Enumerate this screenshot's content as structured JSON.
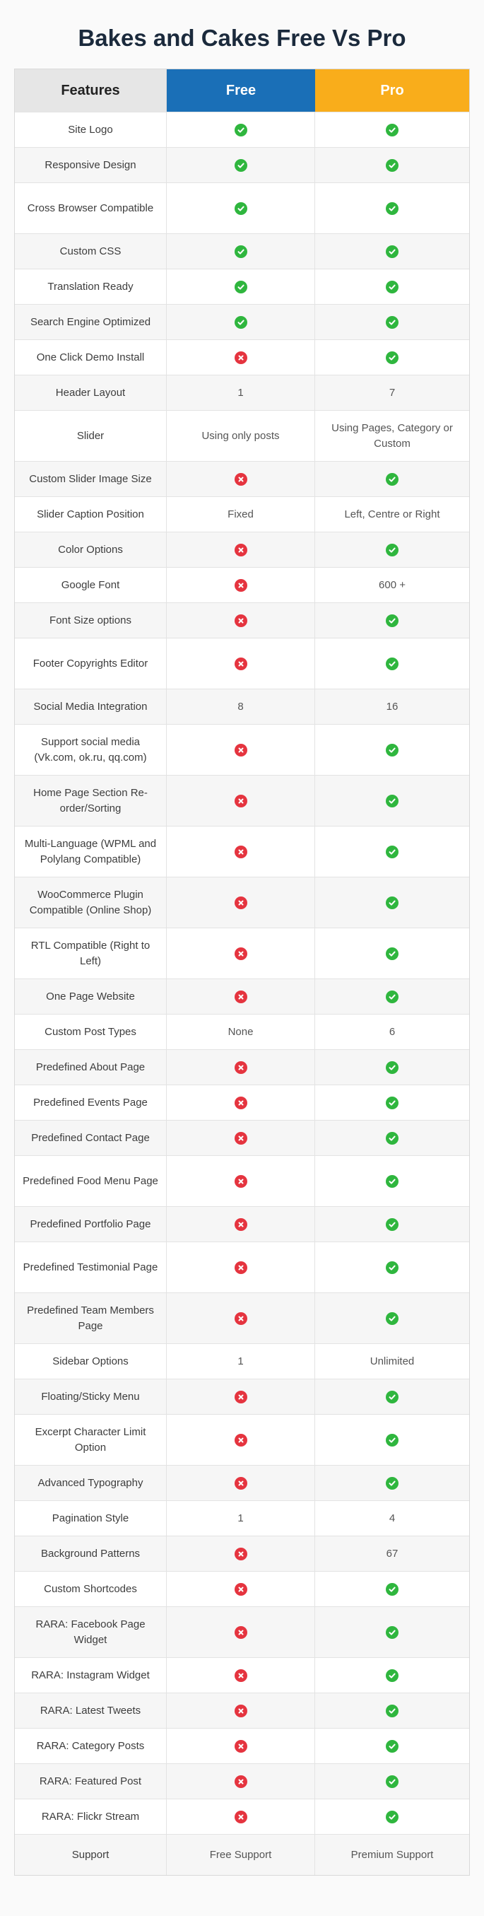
{
  "title": "Bakes and Cakes Free Vs Pro",
  "headers": {
    "features": "Features",
    "free": "Free",
    "pro": "Pro"
  },
  "colors": {
    "free_header": "#1a6fb7",
    "pro_header": "#f9ad1b",
    "check": "#2fb63e",
    "cross": "#e5343f"
  },
  "icons": {
    "check": "check-icon",
    "cross": "cross-icon"
  },
  "rows": [
    {
      "feature": "Site Logo",
      "free": "check",
      "pro": "check"
    },
    {
      "feature": "Responsive Design",
      "free": "check",
      "pro": "check"
    },
    {
      "feature": "Cross Browser Compatible",
      "free": "check",
      "pro": "check"
    },
    {
      "feature": "Custom CSS",
      "free": "check",
      "pro": "check"
    },
    {
      "feature": "Translation Ready",
      "free": "check",
      "pro": "check"
    },
    {
      "feature": "Search Engine Optimized",
      "free": "check",
      "pro": "check"
    },
    {
      "feature": "One Click Demo Install",
      "free": "cross",
      "pro": "check"
    },
    {
      "feature": "Header Layout",
      "free": "1",
      "pro": "7"
    },
    {
      "feature": "Slider",
      "free": "Using only posts",
      "pro": "Using Pages, Category or Custom"
    },
    {
      "feature": "Custom Slider Image Size",
      "free": "cross",
      "pro": "check"
    },
    {
      "feature": "Slider Caption Position",
      "free": "Fixed",
      "pro": "Left, Centre or Right"
    },
    {
      "feature": "Color Options",
      "free": "cross",
      "pro": "check"
    },
    {
      "feature": "Google Font",
      "free": "cross",
      "pro": "600 +"
    },
    {
      "feature": "Font Size options",
      "free": "cross",
      "pro": "check"
    },
    {
      "feature": "Footer Copyrights Editor",
      "free": "cross",
      "pro": "check"
    },
    {
      "feature": "Social Media Integration",
      "free": "8",
      "pro": "16"
    },
    {
      "feature": "Support social media (Vk.com, ok.ru, qq.com)",
      "free": "cross",
      "pro": "check"
    },
    {
      "feature": "Home Page Section Re-order/Sorting",
      "free": "cross",
      "pro": "check"
    },
    {
      "feature": "Multi-Language (WPML and Polylang Compatible)",
      "free": "cross",
      "pro": "check"
    },
    {
      "feature": "WooCommerce Plugin Compatible (Online Shop)",
      "free": "cross",
      "pro": "check"
    },
    {
      "feature": "RTL Compatible (Right to Left)",
      "free": "cross",
      "pro": "check"
    },
    {
      "feature": "One Page Website",
      "free": "cross",
      "pro": "check"
    },
    {
      "feature": "Custom Post Types",
      "free": "None",
      "pro": "6"
    },
    {
      "feature": "Predefined About Page",
      "free": "cross",
      "pro": "check"
    },
    {
      "feature": "Predefined Events Page",
      "free": "cross",
      "pro": "check"
    },
    {
      "feature": "Predefined Contact Page",
      "free": "cross",
      "pro": "check"
    },
    {
      "feature": "Predefined Food Menu Page",
      "free": "cross",
      "pro": "check"
    },
    {
      "feature": "Predefined Portfolio Page",
      "free": "cross",
      "pro": "check"
    },
    {
      "feature": "Predefined Testimonial Page",
      "free": "cross",
      "pro": "check"
    },
    {
      "feature": "Predefined Team Members Page",
      "free": "cross",
      "pro": "check"
    },
    {
      "feature": "Sidebar Options",
      "free": "1",
      "pro": "Unlimited"
    },
    {
      "feature": "Floating/Sticky Menu",
      "free": "cross",
      "pro": "check"
    },
    {
      "feature": "Excerpt Character Limit Option",
      "free": "cross",
      "pro": "check"
    },
    {
      "feature": "Advanced Typography",
      "free": "cross",
      "pro": "check"
    },
    {
      "feature": "Pagination Style",
      "free": "1",
      "pro": "4"
    },
    {
      "feature": "Background Patterns",
      "free": "cross",
      "pro": "67"
    },
    {
      "feature": "Custom Shortcodes",
      "free": "cross",
      "pro": "check"
    },
    {
      "feature": "RARA: Facebook Page Widget",
      "free": "cross",
      "pro": "check"
    },
    {
      "feature": "RARA: Instagram Widget",
      "free": "cross",
      "pro": "check"
    },
    {
      "feature": "RARA: Latest Tweets",
      "free": "cross",
      "pro": "check"
    },
    {
      "feature": "RARA: Category Posts",
      "free": "cross",
      "pro": "check"
    },
    {
      "feature": "RARA: Featured Post",
      "free": "cross",
      "pro": "check"
    },
    {
      "feature": "RARA: Flickr Stream",
      "free": "cross",
      "pro": "check"
    },
    {
      "feature": "Support",
      "free": "Free Support",
      "pro": "Premium Support"
    }
  ]
}
